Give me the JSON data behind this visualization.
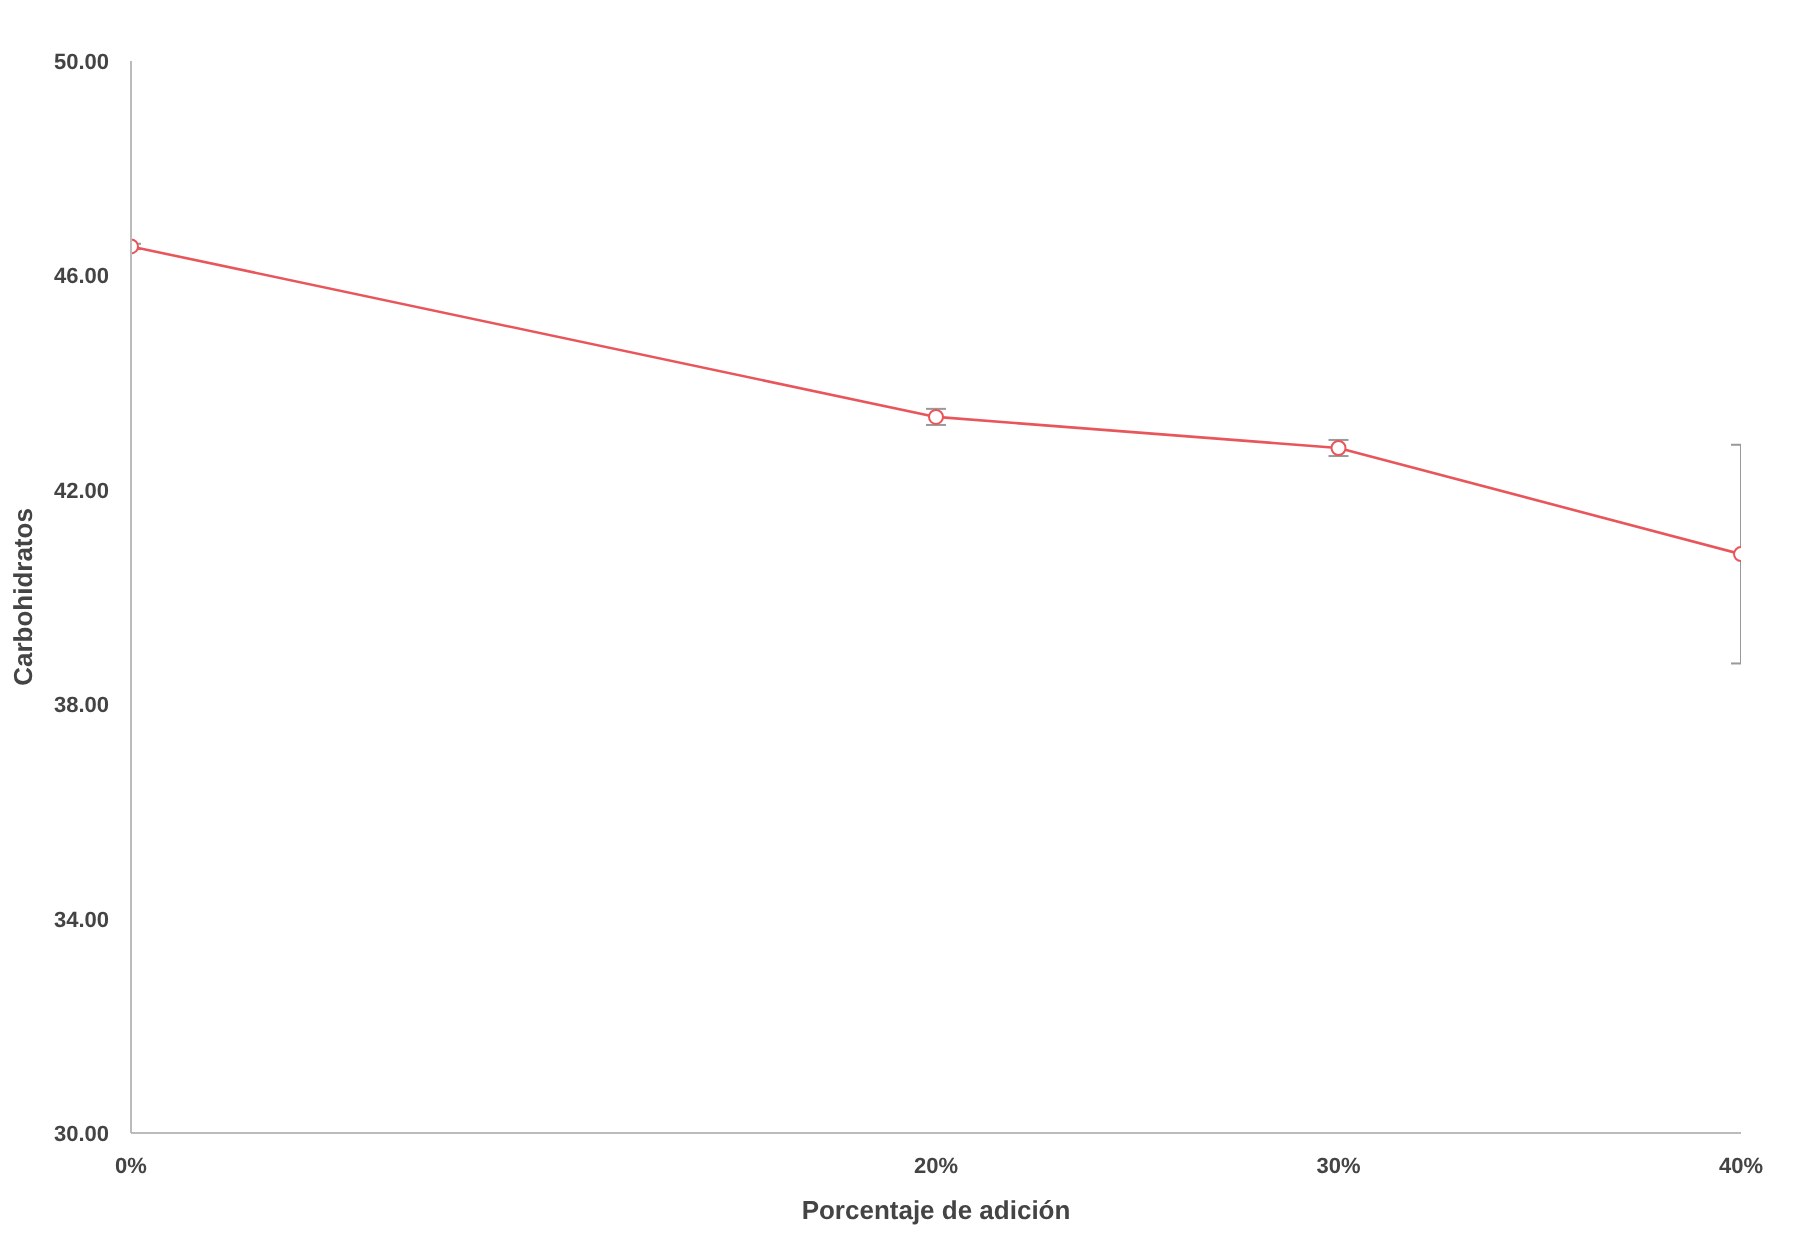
{
  "chart_data": {
    "type": "line",
    "xlabel": "Porcentaje de adición",
    "ylabel": "Carbohidratos",
    "x": [
      0,
      20,
      30,
      40
    ],
    "series": [
      {
        "color": "#e8555a",
        "values": [
          46.54,
          43.36,
          42.78,
          40.8
        ],
        "errors": [
          0.05,
          0.15,
          0.15,
          2.04
        ]
      }
    ],
    "xlim": [
      0,
      40
    ],
    "xticks": [
      {
        "value": 0,
        "label": "0%"
      },
      {
        "value": 20,
        "label": "20%"
      },
      {
        "value": 30,
        "label": "30%"
      },
      {
        "value": 40,
        "label": "40%"
      }
    ],
    "ylim": [
      30,
      50
    ],
    "yticks": [
      {
        "value": 30,
        "label": "30.00"
      },
      {
        "value": 34,
        "label": "34.00"
      },
      {
        "value": 38,
        "label": "38.00"
      },
      {
        "value": 42,
        "label": "42.00"
      },
      {
        "value": 46,
        "label": "46.00"
      },
      {
        "value": 50,
        "label": "50.00"
      }
    ],
    "marker": "circle",
    "line_style": "solid"
  }
}
